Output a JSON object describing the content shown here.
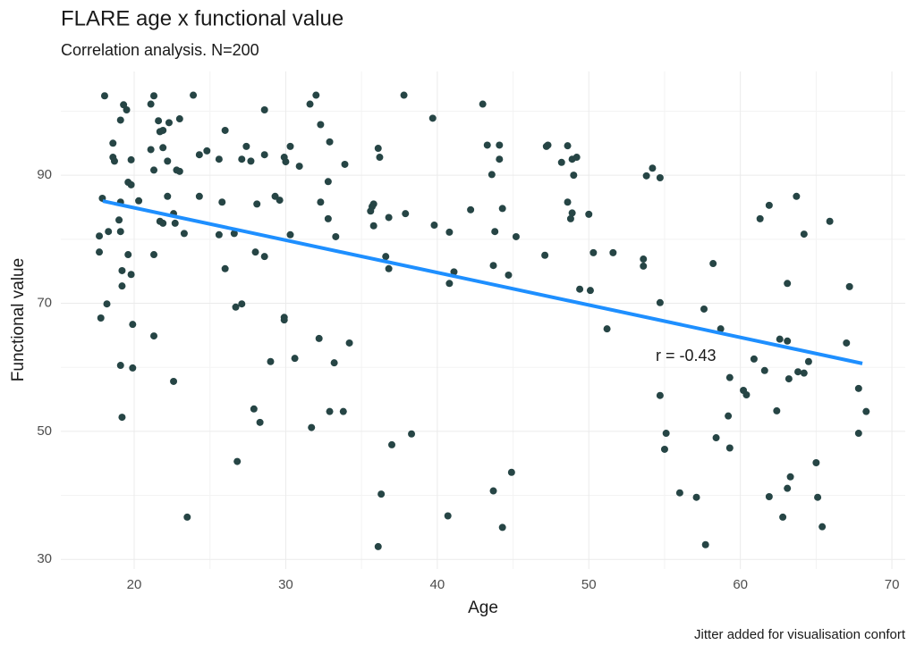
{
  "chart_data": {
    "type": "scatter",
    "title": "FLARE age x functional value",
    "subtitle": "Correlation analysis. N=200",
    "x_label": "Age",
    "y_label": "Functional value",
    "caption": "Jitter added for visualisation confort",
    "annotation": "r =  -0.43",
    "color": "#264545",
    "trend_color": "#1e8fff",
    "grid": true,
    "xlim": [
      15.16,
      70.88
    ],
    "ylim": [
      28.5,
      106.2
    ],
    "xticks": [
      20,
      30,
      40,
      50,
      60,
      70
    ],
    "yticks": [
      30,
      50,
      70,
      90
    ],
    "xminor": [
      25,
      35,
      45,
      55,
      65
    ],
    "yminor": [
      40,
      60,
      80,
      100
    ],
    "trend": {
      "x": [
        17.93,
        68.05
      ],
      "y": [
        85.96,
        60.6
      ]
    },
    "x": [
      18.05,
      17.7,
      17.7,
      17.8,
      18.2,
      17.9,
      18.3,
      18.6,
      18.6,
      18.7,
      19.0,
      19.1,
      19.1,
      19.1,
      19.3,
      19.2,
      19.2,
      19.1,
      19.2,
      19.5,
      19.6,
      19.8,
      19.8,
      19.6,
      19.8,
      19.9,
      19.9,
      20.3,
      21.1,
      21.1,
      21.3,
      21.3,
      21.3,
      21.3,
      21.6,
      21.7,
      21.9,
      21.9,
      21.7,
      21.9,
      22.2,
      22.2,
      22.3,
      22.6,
      22.7,
      22.8,
      23.0,
      22.6,
      23.3,
      23.5,
      23.9,
      24.3,
      24.3,
      24.8,
      25.6,
      25.6,
      25.8,
      26.0,
      26.0,
      26.6,
      26.7,
      27.1,
      26.8,
      27.1,
      27.4,
      27.7,
      27.9,
      28.0,
      28.1,
      28.3,
      28.6,
      28.6,
      28.6,
      29.0,
      29.3,
      29.6,
      29.9,
      29.9,
      29.9,
      30.0,
      30.3,
      30.3,
      30.6,
      30.9,
      31.6,
      31.7,
      32.0,
      32.2,
      32.3,
      32.3,
      32.8,
      32.8,
      32.9,
      32.9,
      33.2,
      33.3,
      33.9,
      33.8,
      34.2,
      35.6,
      35.7,
      35.8,
      35.8,
      36.1,
      36.2,
      36.1,
      36.3,
      36.6,
      36.8,
      36.8,
      37.0,
      37.8,
      37.9,
      38.3,
      39.7,
      39.8,
      40.8,
      40.8,
      40.7,
      41.1,
      42.2,
      43.0,
      43.3,
      43.6,
      43.7,
      43.7,
      43.8,
      44.1,
      44.1,
      44.3,
      44.3,
      44.7,
      44.9,
      45.2,
      47.1,
      47.2,
      47.3,
      48.2,
      48.6,
      48.6,
      48.8,
      48.9,
      48.9,
      49.0,
      49.2,
      49.4,
      50.0,
      50.1,
      50.3,
      51.2,
      51.6,
      53.6,
      53.6,
      53.8,
      54.2,
      54.7,
      54.7,
      54.7,
      55.1,
      55.0,
      56.0,
      57.1,
      57.6,
      57.7,
      58.2,
      58.4,
      58.7,
      59.2,
      59.3,
      59.3,
      60.2,
      60.4,
      60.9,
      61.3,
      61.6,
      61.9,
      61.9,
      62.4,
      62.6,
      62.8,
      63.1,
      63.1,
      63.2,
      63.1,
      63.3,
      63.7,
      63.8,
      64.2,
      64.2,
      64.5,
      65.0,
      65.1,
      65.4,
      65.9,
      67.0,
      67.2,
      67.8,
      67.8,
      68.3,
      23.0
    ],
    "y": [
      102.4,
      80.5,
      78.0,
      67.7,
      69.9,
      86.4,
      81.2,
      95.0,
      92.8,
      92.2,
      83.0,
      85.8,
      81.2,
      98.6,
      101.0,
      75.1,
      72.7,
      60.3,
      52.2,
      100.2,
      88.9,
      88.5,
      92.4,
      77.6,
      74.5,
      66.7,
      59.9,
      86.0,
      101.1,
      94.0,
      102.4,
      90.8,
      77.6,
      64.9,
      98.5,
      96.8,
      97.0,
      94.3,
      82.8,
      82.5,
      92.2,
      86.7,
      98.2,
      84.0,
      82.5,
      90.8,
      98.8,
      57.8,
      80.9,
      36.6,
      102.5,
      93.2,
      86.7,
      93.8,
      92.5,
      80.7,
      85.8,
      97.0,
      75.4,
      80.9,
      69.4,
      69.9,
      45.3,
      92.5,
      94.5,
      92.2,
      53.5,
      78.0,
      85.5,
      51.4,
      100.2,
      93.2,
      77.3,
      60.9,
      86.7,
      86.1,
      67.8,
      67.4,
      92.8,
      92.1,
      94.5,
      80.7,
      61.4,
      91.4,
      101.1,
      50.6,
      102.5,
      64.5,
      85.8,
      97.9,
      89.0,
      83.2,
      95.2,
      53.1,
      60.7,
      80.4,
      91.7,
      53.1,
      63.8,
      84.4,
      85.1,
      85.5,
      82.1,
      94.2,
      92.8,
      32.0,
      40.2,
      77.3,
      75.4,
      83.4,
      47.9,
      102.5,
      84.0,
      49.6,
      98.9,
      82.2,
      81.1,
      73.1,
      36.8,
      74.9,
      84.6,
      101.1,
      94.7,
      90.1,
      75.9,
      40.7,
      81.2,
      92.5,
      94.7,
      84.8,
      35.0,
      74.4,
      43.6,
      80.4,
      77.5,
      94.5,
      94.7,
      92.0,
      94.6,
      85.8,
      83.2,
      92.5,
      84.1,
      90.0,
      92.8,
      72.2,
      83.9,
      72.0,
      77.9,
      66.0,
      77.9,
      76.9,
      75.8,
      89.9,
      91.1,
      89.6,
      70.1,
      55.6,
      49.7,
      47.2,
      40.4,
      39.7,
      69.1,
      32.3,
      76.2,
      49.0,
      66.0,
      52.4,
      47.4,
      58.4,
      56.4,
      55.7,
      61.3,
      83.2,
      59.5,
      85.3,
      39.8,
      53.2,
      64.4,
      36.6,
      73.1,
      64.1,
      58.2,
      41.1,
      42.9,
      86.7,
      59.3,
      59.1,
      80.8,
      60.9,
      45.1,
      39.7,
      35.1,
      82.8,
      63.8,
      72.6,
      56.7,
      49.7,
      53.1,
      90.6
    ]
  }
}
